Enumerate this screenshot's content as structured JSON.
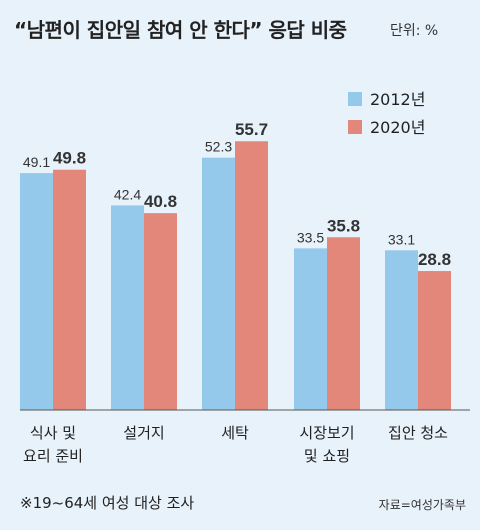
{
  "title": "“남편이 집안일 참여 안 한다” 응답 비중",
  "unit": "단위: %",
  "footnote": "※19~64세 여성 대상 조사",
  "source": "자료=여성가족부",
  "colors": {
    "s2012": "#94c9ec",
    "s2020": "#e4877b",
    "background": "#e8f2fb"
  },
  "chart_data": {
    "type": "bar",
    "title": "“남편이 집안일 참여 안 한다” 응답 비중",
    "unit": "단위: %",
    "categories": [
      [
        "식사 및",
        "요리 준비"
      ],
      [
        "설거지"
      ],
      [
        "세탁"
      ],
      [
        "시장보기",
        "및 쇼핑"
      ],
      [
        "집안 청소"
      ]
    ],
    "series": [
      {
        "name": "2012년",
        "values": [
          49.1,
          42.4,
          52.3,
          33.5,
          33.1
        ],
        "color": "#94c9ec"
      },
      {
        "name": "2020년",
        "values": [
          49.8,
          40.8,
          55.7,
          35.8,
          28.8
        ],
        "color": "#e4877b"
      }
    ],
    "ylim": [
      0,
      60
    ],
    "grid": false,
    "legend_position": "top-right"
  }
}
